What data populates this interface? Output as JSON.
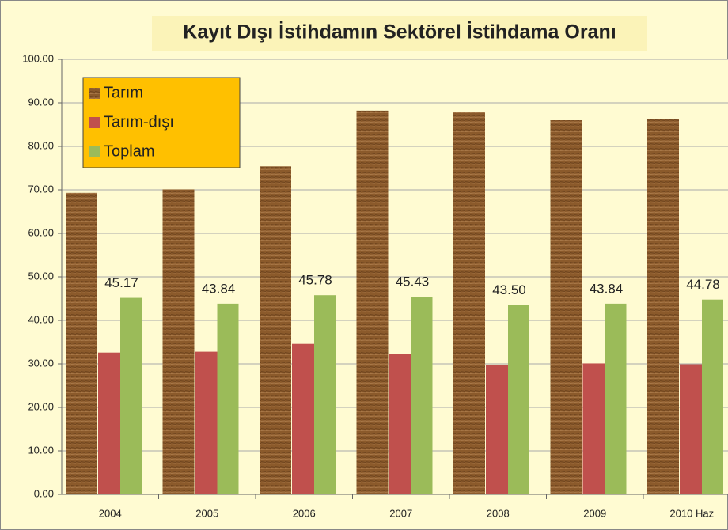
{
  "chart_data": {
    "type": "bar",
    "title": "Kayıt Dışı İstihdamın Sektörel İstihdama Oranı",
    "categories": [
      "2004",
      "2005",
      "2006",
      "2007",
      "2008",
      "2009",
      "2010 Haz"
    ],
    "series": [
      {
        "name": "Tarım",
        "color": "#8b5a2b",
        "values": [
          69.3,
          70.1,
          75.4,
          88.2,
          87.8,
          86.0,
          86.2
        ]
      },
      {
        "name": "Tarım-dışı",
        "color": "#c0504d",
        "values": [
          32.6,
          32.8,
          34.6,
          32.2,
          29.7,
          30.1,
          29.9
        ]
      },
      {
        "name": "Toplam",
        "color": "#9bbb59",
        "values": [
          45.17,
          43.84,
          45.78,
          45.43,
          43.5,
          43.84,
          44.78
        ],
        "value_labels": [
          "45.17",
          "43.84",
          "45.78",
          "45.43",
          "43.50",
          "43.84",
          "44.78"
        ]
      }
    ],
    "ylim": [
      0,
      100
    ],
    "yticks": [
      {
        "value": 0,
        "label": "0.00"
      },
      {
        "value": 10,
        "label": "10.00"
      },
      {
        "value": 20,
        "label": "20.00"
      },
      {
        "value": 30,
        "label": "30.00"
      },
      {
        "value": 40,
        "label": "40.00"
      },
      {
        "value": 50,
        "label": "50.00"
      },
      {
        "value": 60,
        "label": "60.00"
      },
      {
        "value": 70,
        "label": "70.00"
      },
      {
        "value": 80,
        "label": "80.00"
      },
      {
        "value": 90,
        "label": "90.00"
      },
      {
        "value": 100,
        "label": "100.00"
      }
    ],
    "grid": true,
    "legend": "upper left"
  }
}
